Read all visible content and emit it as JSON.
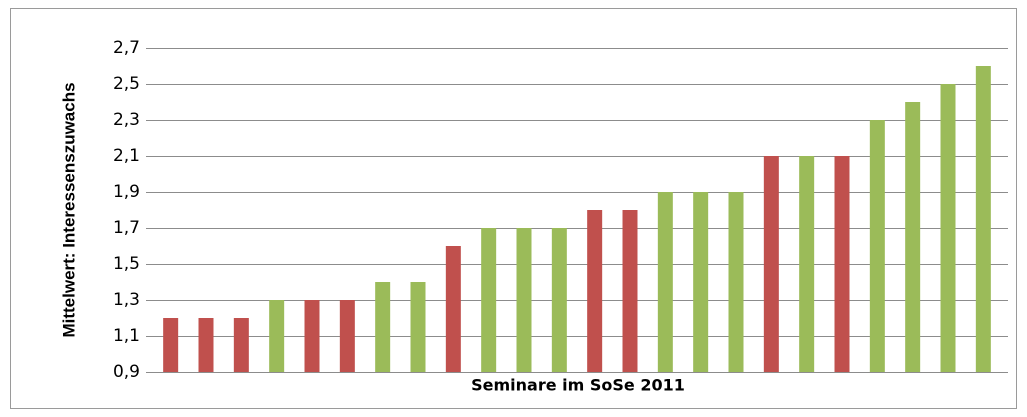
{
  "chart_data": {
    "type": "bar",
    "x_label": "Seminare im SoSe 2011",
    "y_label": "Mittelwert: Interessenszuwachs",
    "categories": [
      null,
      null,
      null,
      null,
      null,
      null,
      null,
      null,
      null,
      null,
      null,
      null,
      null,
      null,
      null,
      null,
      null,
      null,
      null,
      null,
      null,
      null,
      null,
      null
    ],
    "values": [
      1.2,
      1.2,
      1.2,
      1.3,
      1.3,
      1.3,
      1.4,
      1.4,
      1.6,
      1.7,
      1.7,
      1.7,
      1.8,
      1.8,
      1.9,
      1.9,
      1.9,
      2.1,
      2.1,
      2.1,
      2.3,
      2.4,
      2.5,
      2.6
    ],
    "colors": [
      "#c0504d",
      "#c0504d",
      "#c0504d",
      "#9bbb59",
      "#c0504d",
      "#c0504d",
      "#9bbb59",
      "#9bbb59",
      "#c0504d",
      "#9bbb59",
      "#9bbb59",
      "#9bbb59",
      "#c0504d",
      "#c0504d",
      "#9bbb59",
      "#9bbb59",
      "#9bbb59",
      "#c0504d",
      "#9bbb59",
      "#c0504d",
      "#9bbb59",
      "#9bbb59",
      "#9bbb59",
      "#9bbb59"
    ],
    "ylim": [
      0.9,
      2.7
    ],
    "yticks": [
      {
        "value": 0.9,
        "label": "0,9"
      },
      {
        "value": 1.1,
        "label": "1,1"
      },
      {
        "value": 1.3,
        "label": "1,3"
      },
      {
        "value": 1.5,
        "label": "1,5"
      },
      {
        "value": 1.7,
        "label": "1,7"
      },
      {
        "value": 1.9,
        "label": "1,9"
      },
      {
        "value": 2.1,
        "label": "2,1"
      },
      {
        "value": 2.3,
        "label": "2,3"
      },
      {
        "value": 2.5,
        "label": "2,5"
      },
      {
        "value": 2.7,
        "label": "2,7"
      }
    ],
    "grid": true
  }
}
